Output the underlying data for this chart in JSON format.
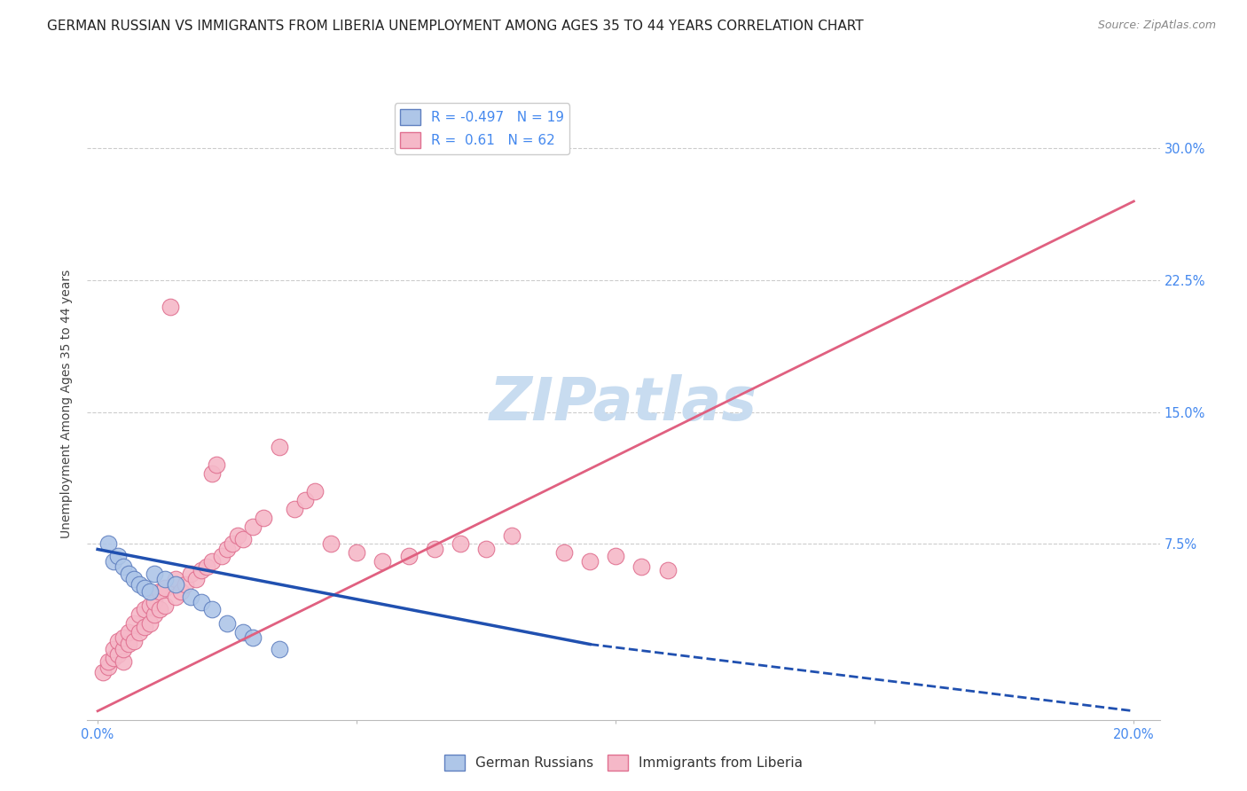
{
  "title": "GERMAN RUSSIAN VS IMMIGRANTS FROM LIBERIA UNEMPLOYMENT AMONG AGES 35 TO 44 YEARS CORRELATION CHART",
  "source": "Source: ZipAtlas.com",
  "ylabel": "Unemployment Among Ages 35 to 44 years",
  "xlim": [
    -0.002,
    0.205
  ],
  "ylim": [
    -0.025,
    0.335
  ],
  "xticks": [
    0.0,
    0.05,
    0.1,
    0.15,
    0.2
  ],
  "xtick_labels": [
    "0.0%",
    "",
    "",
    "",
    "20.0%"
  ],
  "ytick_labels_right": [
    "7.5%",
    "15.0%",
    "22.5%",
    "30.0%"
  ],
  "yticks_right": [
    0.075,
    0.15,
    0.225,
    0.3
  ],
  "background_color": "#ffffff",
  "watermark": "ZIPatlas",
  "watermark_color": "#c8dcf0",
  "german_russian_color": "#aec6e8",
  "liberia_color": "#f5b8c8",
  "german_russian_edge": "#6080c0",
  "liberia_edge": "#e07090",
  "R_german": -0.497,
  "N_german": 19,
  "R_liberia": 0.61,
  "N_liberia": 62,
  "german_russian_x": [
    0.002,
    0.003,
    0.004,
    0.005,
    0.006,
    0.007,
    0.008,
    0.009,
    0.01,
    0.011,
    0.013,
    0.015,
    0.018,
    0.02,
    0.022,
    0.025,
    0.028,
    0.03,
    0.035
  ],
  "german_russian_y": [
    0.075,
    0.065,
    0.068,
    0.062,
    0.058,
    0.055,
    0.052,
    0.05,
    0.048,
    0.058,
    0.055,
    0.052,
    0.045,
    0.042,
    0.038,
    0.03,
    0.025,
    0.022,
    0.015
  ],
  "liberia_x": [
    0.001,
    0.002,
    0.002,
    0.003,
    0.003,
    0.004,
    0.004,
    0.005,
    0.005,
    0.005,
    0.006,
    0.006,
    0.007,
    0.007,
    0.008,
    0.008,
    0.009,
    0.009,
    0.01,
    0.01,
    0.011,
    0.011,
    0.012,
    0.012,
    0.013,
    0.013,
    0.014,
    0.015,
    0.015,
    0.016,
    0.017,
    0.018,
    0.019,
    0.02,
    0.021,
    0.022,
    0.022,
    0.023,
    0.024,
    0.025,
    0.026,
    0.027,
    0.028,
    0.03,
    0.032,
    0.035,
    0.038,
    0.04,
    0.042,
    0.045,
    0.05,
    0.055,
    0.06,
    0.065,
    0.07,
    0.075,
    0.08,
    0.09,
    0.095,
    0.1,
    0.105,
    0.11
  ],
  "liberia_y": [
    0.002,
    0.005,
    0.008,
    0.01,
    0.015,
    0.012,
    0.02,
    0.008,
    0.015,
    0.022,
    0.018,
    0.025,
    0.02,
    0.03,
    0.025,
    0.035,
    0.028,
    0.038,
    0.03,
    0.04,
    0.035,
    0.042,
    0.038,
    0.048,
    0.04,
    0.05,
    0.21,
    0.045,
    0.055,
    0.048,
    0.052,
    0.058,
    0.055,
    0.06,
    0.062,
    0.115,
    0.065,
    0.12,
    0.068,
    0.072,
    0.075,
    0.08,
    0.078,
    0.085,
    0.09,
    0.13,
    0.095,
    0.1,
    0.105,
    0.075,
    0.07,
    0.065,
    0.068,
    0.072,
    0.075,
    0.072,
    0.08,
    0.07,
    0.065,
    0.068,
    0.062,
    0.06
  ],
  "liberia_trend_x0": 0.0,
  "liberia_trend_y0": -0.02,
  "liberia_trend_x1": 0.2,
  "liberia_trend_y1": 0.27,
  "german_trend_x0": 0.0,
  "german_trend_y0": 0.072,
  "german_trend_solid_x1": 0.095,
  "german_trend_solid_y1": 0.018,
  "german_trend_dash_x1": 0.2,
  "german_trend_dash_y1": -0.02,
  "grid_color": "#cccccc",
  "title_fontsize": 11,
  "label_fontsize": 10,
  "tick_fontsize": 10.5,
  "legend_fontsize": 11
}
